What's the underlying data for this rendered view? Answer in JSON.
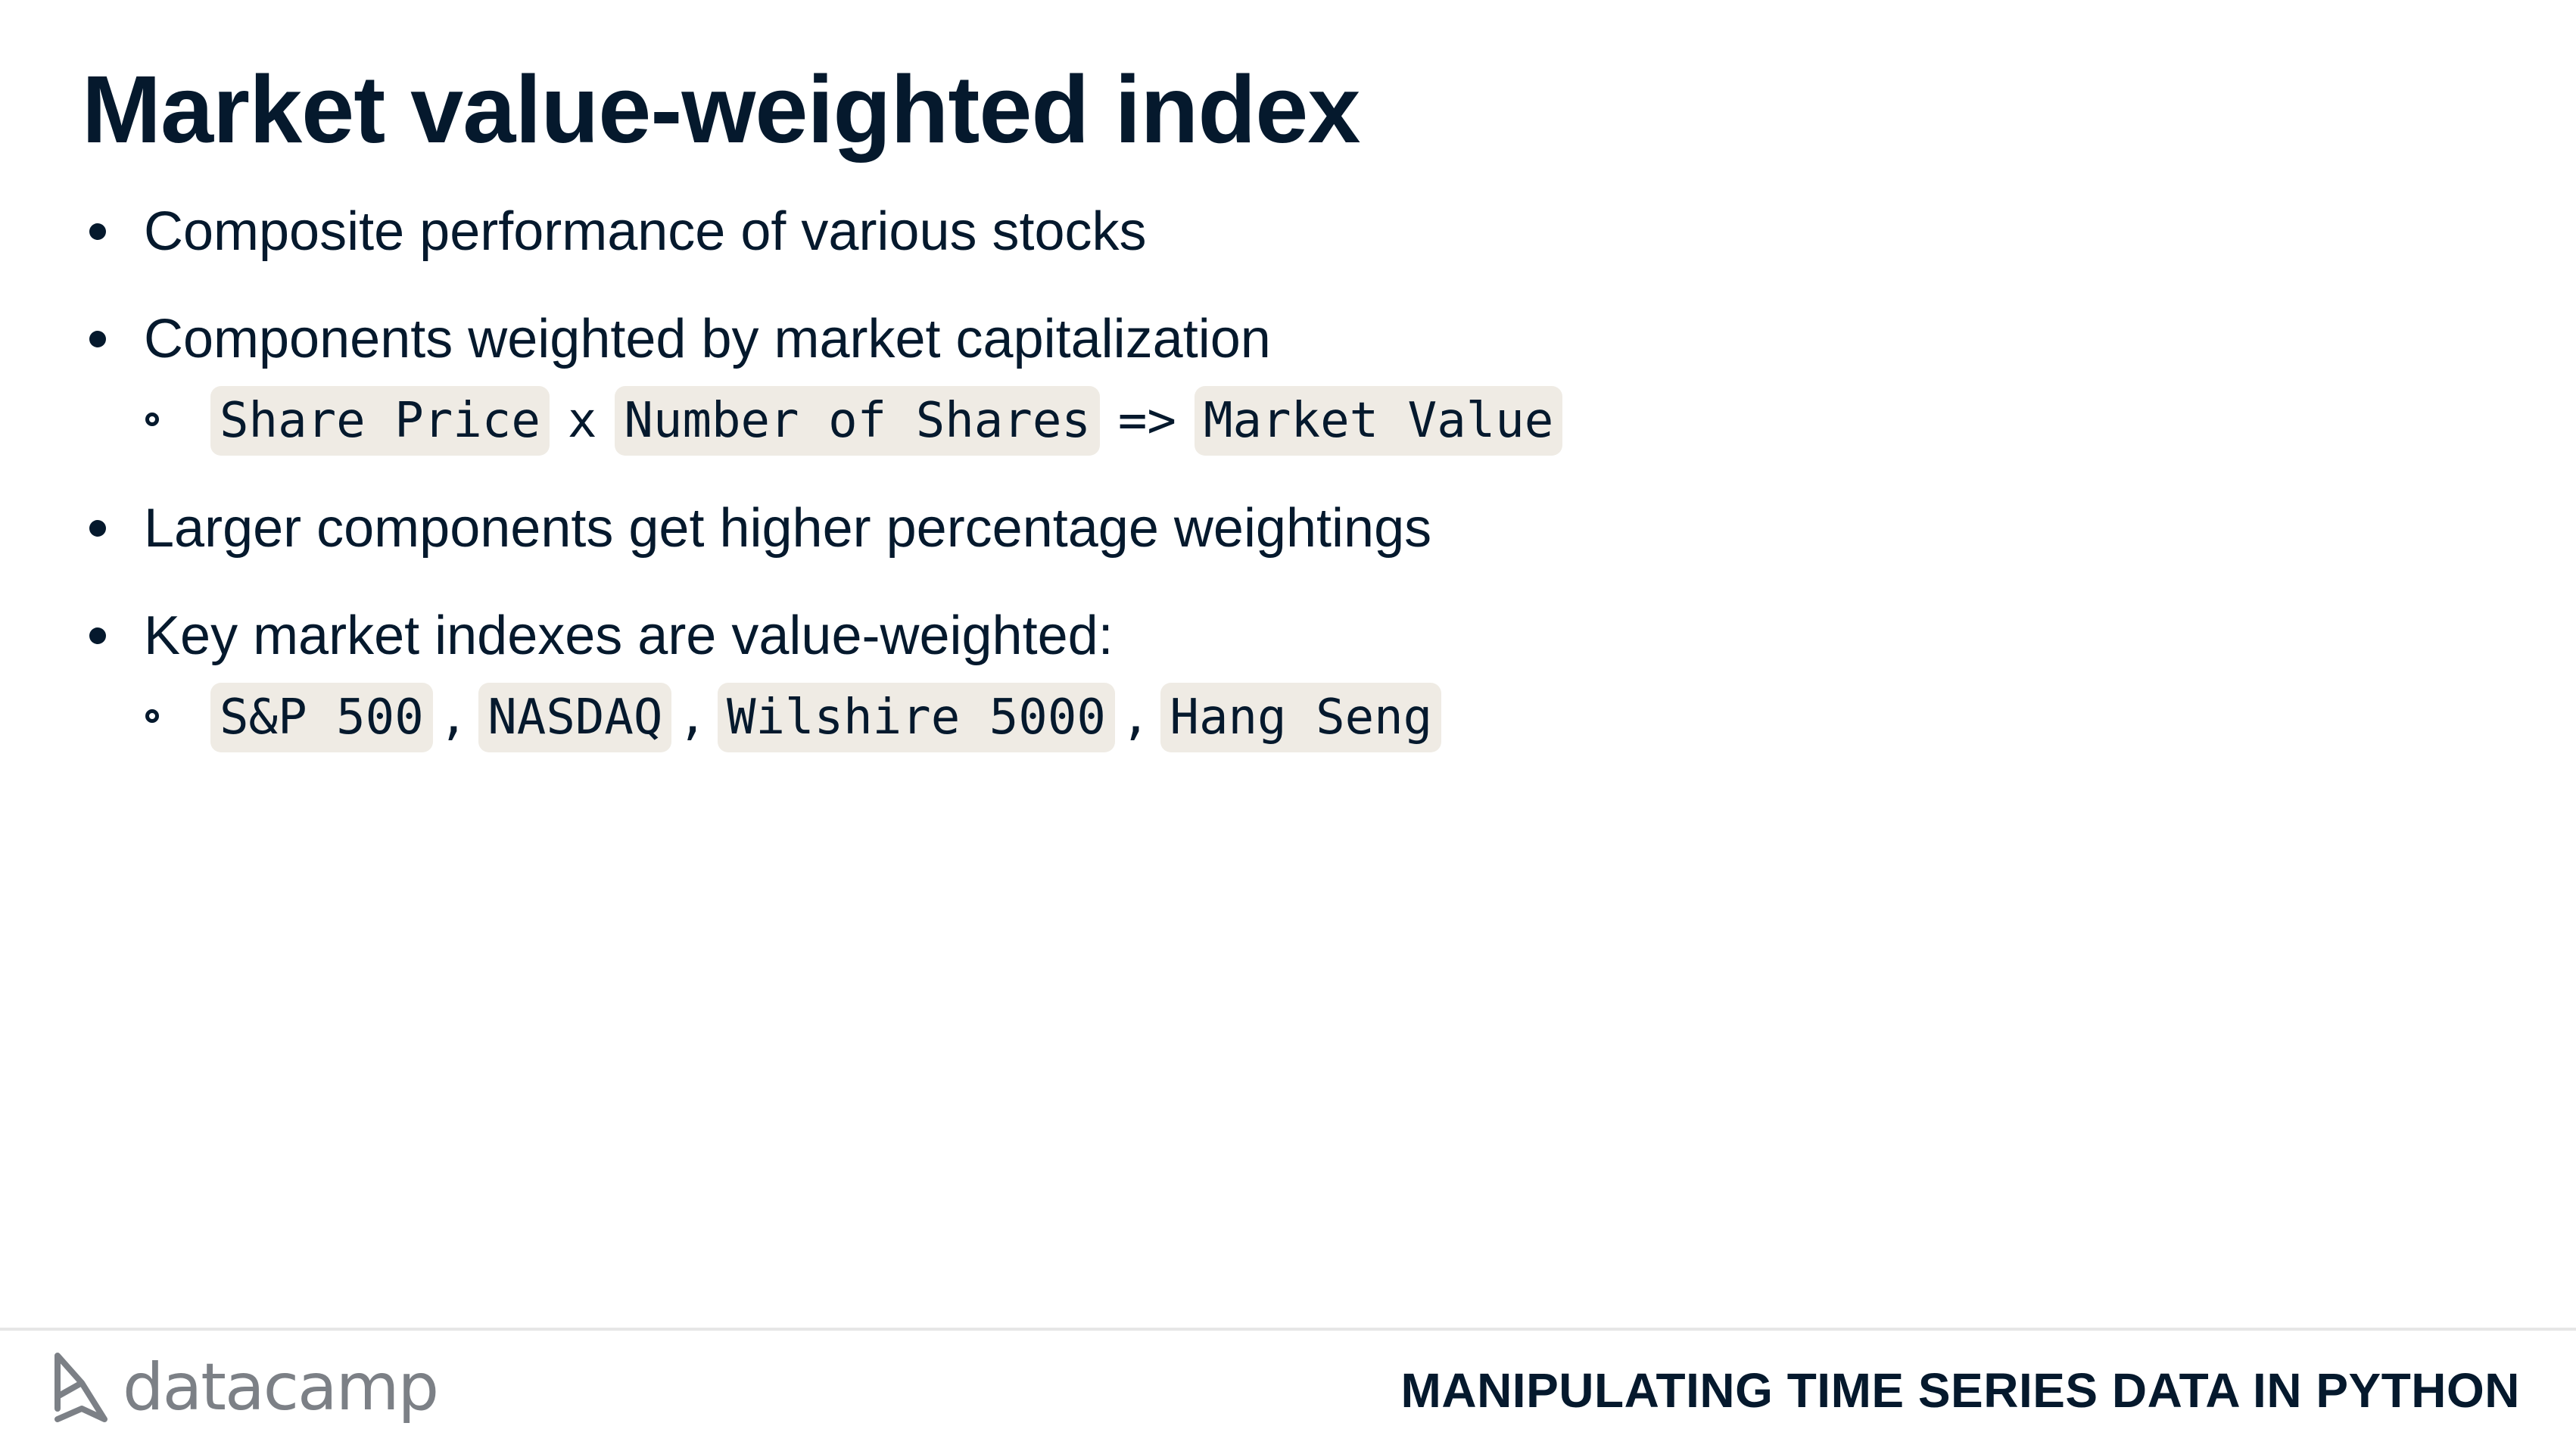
{
  "slide": {
    "title": "Market value-weighted index",
    "bullets": [
      {
        "text": "Composite performance of various stocks"
      },
      {
        "text": "Components weighted by market capitalization"
      },
      {
        "text": "Larger components get higher percentage weightings"
      },
      {
        "text": "Key market indexes are value-weighted:"
      }
    ],
    "formula": {
      "term1": "Share Price",
      "op1": "x",
      "term2": "Number of Shares",
      "op2": "=>",
      "term3": "Market Value"
    },
    "indexes": {
      "items": [
        "S&P 500",
        "NASDAQ",
        "Wilshire 5000",
        "Hang Seng"
      ],
      "separator": ","
    }
  },
  "footer": {
    "logo_text": "datacamp",
    "logo_icon": "datacamp-logo-icon",
    "course_title": "MANIPULATING TIME SERIES DATA IN PYTHON"
  }
}
